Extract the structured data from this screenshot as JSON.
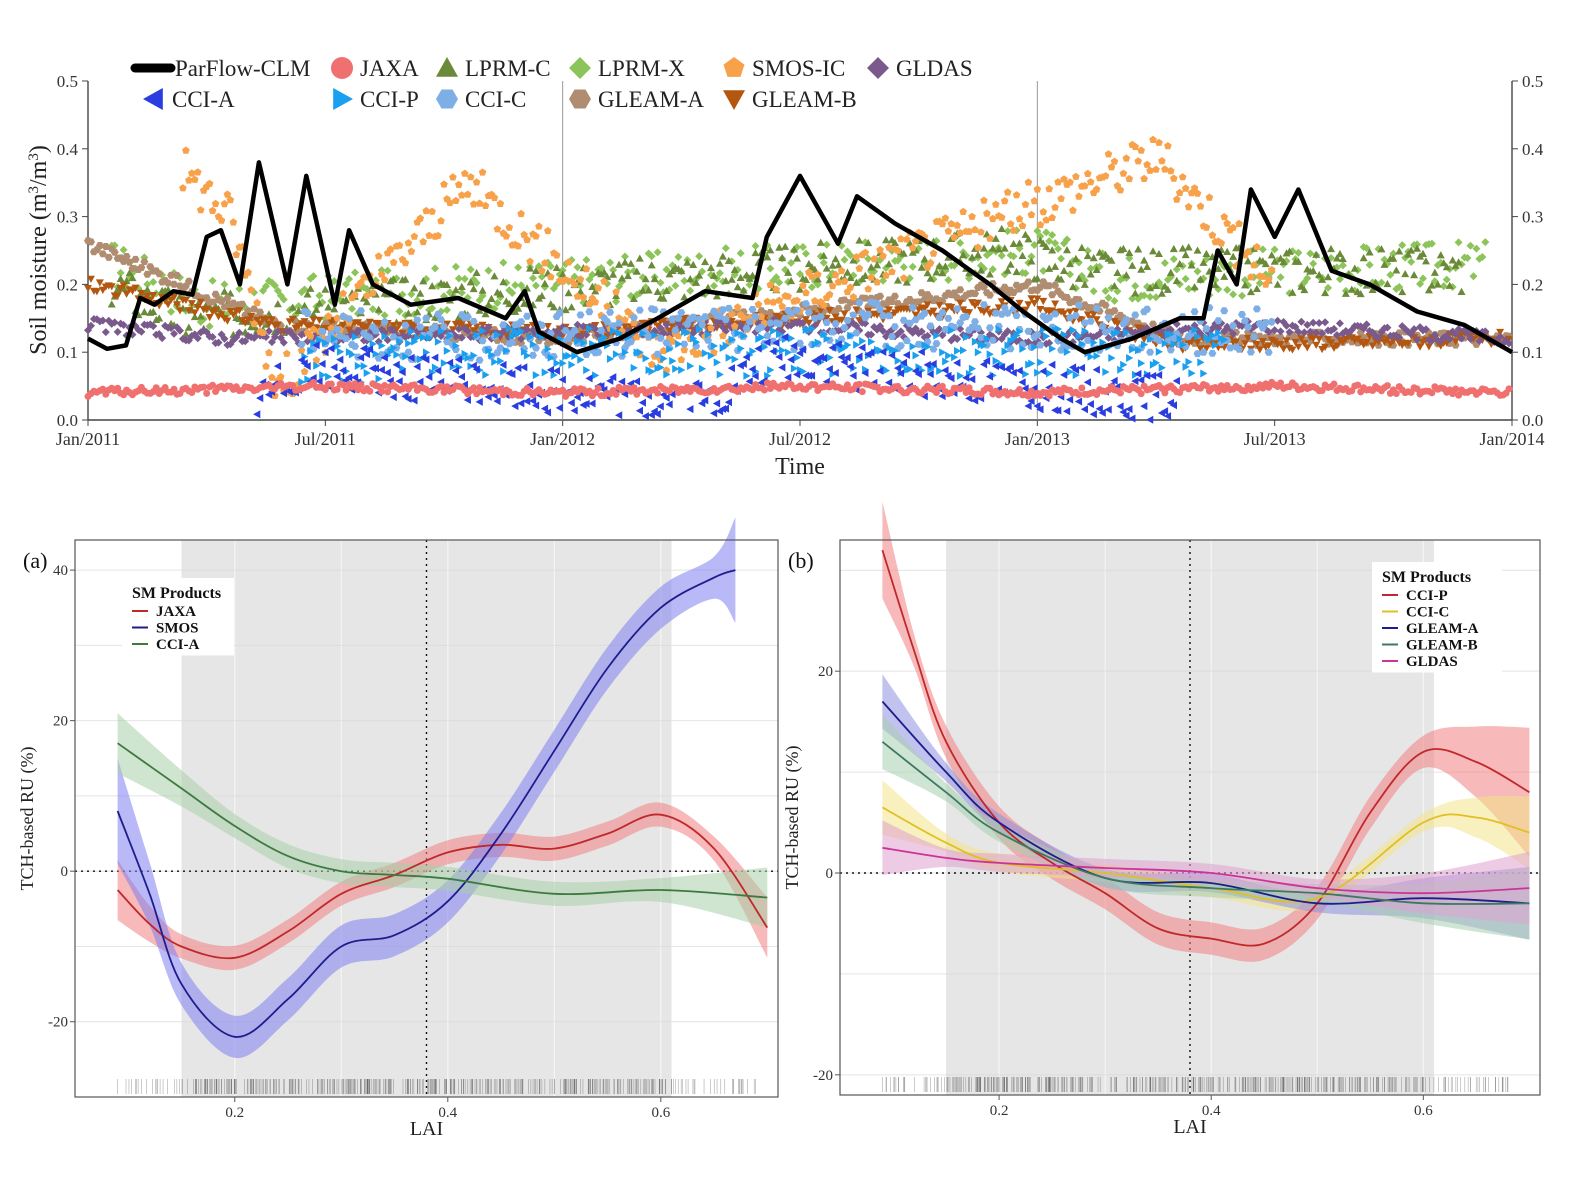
{
  "colors": {
    "ParFlow-CLM": "#000000",
    "JAXA": "#f07070",
    "LPRM-C": "#6a8a3a",
    "LPRM-X": "#8cc45a",
    "SMOS-IC": "#f7a24a",
    "GLDAS": "#7a5a8c",
    "CCI-A": "#2a3ee0",
    "CCI-P": "#1aa0ee",
    "CCI-C": "#7eaee6",
    "GLEAM-A": "#b08d70",
    "GLEAM-B": "#b3560f",
    "ru_JAXA": "#c0292b",
    "ru_SMOS": "#1d1d8c",
    "ru_CCI-A": "#3c7a40",
    "ru_CCI-P": "#c0292b",
    "ru_CCI-C": "#e0c020",
    "ru_GLEAM-A": "#1d1d8c",
    "ru_GLEAM-B": "#3c7a60",
    "ru_GLDAS": "#cc3399",
    "band_JAXA": "#f08080",
    "band_SMOS": "#8080f0",
    "band_CCI-A": "#a8d0a8",
    "band_CCI-P": "#f08080",
    "band_CCI-C": "#f4e48a",
    "band_GLEAM-A": "#9090e0",
    "band_GLEAM-B": "#a8d0b0",
    "band_GLDAS": "#e0a0d0"
  },
  "chart_data": [
    {
      "type": "scatter",
      "panel": "top",
      "ylabel": "Soil moisture (m³/m³)",
      "ylabel_parts": {
        "main": "Soil moisture (m",
        "sup": "3",
        "mid": "/m",
        "sup2": "3",
        "end": ")"
      },
      "xlabel": "Time",
      "ylim": [
        0.0,
        0.5
      ],
      "yticks": [
        "0.0",
        "0.1",
        "0.2",
        "0.3",
        "0.4",
        "0.5"
      ],
      "xticks": [
        "Jan/2011",
        "Jul/2011",
        "Jan/2012",
        "Jul/2012",
        "Jan/2013",
        "Jul/2013",
        "Jan/2014"
      ],
      "legend": {
        "row1": [
          "ParFlow-CLM",
          "JAXA",
          "LPRM-C",
          "LPRM-X",
          "SMOS-IC",
          "GLDAS"
        ],
        "row2": [
          "CCI-A",
          "CCI-P",
          "CCI-C",
          "GLEAM-A",
          "GLEAM-B"
        ]
      },
      "series": [
        {
          "name": "ParFlow-CLM",
          "values": [
            [
              0,
              0.12
            ],
            [
              0.04,
              0.105
            ],
            [
              0.08,
              0.11
            ],
            [
              0.11,
              0.18
            ],
            [
              0.14,
              0.17
            ],
            [
              0.18,
              0.19
            ],
            [
              0.22,
              0.185
            ],
            [
              0.25,
              0.27
            ],
            [
              0.28,
              0.28
            ],
            [
              0.32,
              0.2
            ],
            [
              0.36,
              0.38
            ],
            [
              0.42,
              0.2
            ],
            [
              0.46,
              0.36
            ],
            [
              0.52,
              0.17
            ],
            [
              0.55,
              0.28
            ],
            [
              0.6,
              0.2
            ],
            [
              0.68,
              0.17
            ],
            [
              0.78,
              0.18
            ],
            [
              0.88,
              0.15
            ],
            [
              0.92,
              0.19
            ],
            [
              0.95,
              0.13
            ],
            [
              1.03,
              0.1
            ],
            [
              1.12,
              0.12
            ],
            [
              1.2,
              0.15
            ],
            [
              1.3,
              0.19
            ],
            [
              1.4,
              0.18
            ],
            [
              1.43,
              0.27
            ],
            [
              1.5,
              0.36
            ],
            [
              1.58,
              0.26
            ],
            [
              1.62,
              0.33
            ],
            [
              1.7,
              0.29
            ],
            [
              1.8,
              0.25
            ],
            [
              1.9,
              0.2
            ],
            [
              1.97,
              0.16
            ],
            [
              2.05,
              0.12
            ],
            [
              2.1,
              0.1
            ],
            [
              2.2,
              0.12
            ],
            [
              2.3,
              0.15
            ],
            [
              2.35,
              0.15
            ],
            [
              2.38,
              0.25
            ],
            [
              2.42,
              0.2
            ],
            [
              2.45,
              0.34
            ],
            [
              2.5,
              0.27
            ],
            [
              2.55,
              0.34
            ],
            [
              2.62,
              0.22
            ],
            [
              2.7,
              0.2
            ],
            [
              2.8,
              0.16
            ],
            [
              2.9,
              0.14
            ],
            [
              3.0,
              0.1
            ]
          ]
        },
        {
          "name": "JAXA",
          "values": [
            [
              0,
              0.04
            ],
            [
              0.5,
              0.05
            ],
            [
              1.0,
              0.04
            ],
            [
              1.5,
              0.05
            ],
            [
              2.0,
              0.04
            ],
            [
              2.5,
              0.05
            ],
            [
              3.0,
              0.04
            ]
          ]
        },
        {
          "name": "LPRM-C",
          "values": [
            [
              0.05,
              0.2
            ],
            [
              0.2,
              0.15
            ],
            [
              1.95,
              0.25
            ],
            [
              2.1,
              0.22
            ],
            [
              2.9,
              0.22
            ]
          ]
        },
        {
          "name": "LPRM-X",
          "values": [
            [
              0.05,
              0.23
            ],
            [
              0.25,
              0.17
            ],
            [
              2.0,
              0.25
            ],
            [
              2.15,
              0.21
            ],
            [
              2.95,
              0.23
            ]
          ]
        },
        {
          "name": "SMOS-IC",
          "values": [
            [
              0.2,
              0.37
            ],
            [
              0.3,
              0.3
            ],
            [
              0.4,
              0.05
            ],
            [
              0.8,
              0.35
            ],
            [
              1.2,
              0.1
            ],
            [
              2.25,
              0.39
            ],
            [
              2.5,
              0.2
            ]
          ]
        },
        {
          "name": "GLDAS",
          "values": [
            [
              0,
              0.14
            ],
            [
              0.3,
              0.12
            ],
            [
              1.0,
              0.13
            ],
            [
              1.5,
              0.14
            ],
            [
              2.0,
              0.12
            ],
            [
              2.5,
              0.14
            ],
            [
              3.0,
              0.12
            ]
          ]
        },
        {
          "name": "CCI-A",
          "values": [
            [
              0.35,
              0.02
            ],
            [
              0.45,
              0.08
            ],
            [
              1.3,
              0.02
            ],
            [
              1.45,
              0.09
            ],
            [
              2.3,
              0.03
            ]
          ]
        },
        {
          "name": "CCI-P",
          "values": [
            [
              0.45,
              0.08
            ],
            [
              0.7,
              0.1
            ],
            [
              1.55,
              0.1
            ],
            [
              2.4,
              0.1
            ]
          ]
        },
        {
          "name": "CCI-C",
          "values": [
            [
              0.45,
              0.13
            ],
            [
              0.8,
              0.12
            ],
            [
              1.6,
              0.14
            ],
            [
              2.5,
              0.13
            ]
          ]
        },
        {
          "name": "GLEAM-A",
          "values": [
            [
              0,
              0.26
            ],
            [
              0.4,
              0.14
            ],
            [
              1.0,
              0.12
            ],
            [
              2.0,
              0.2
            ],
            [
              2.3,
              0.12
            ],
            [
              3.0,
              0.12
            ]
          ]
        },
        {
          "name": "GLEAM-B",
          "values": [
            [
              0,
              0.2
            ],
            [
              0.4,
              0.14
            ],
            [
              1.0,
              0.13
            ],
            [
              2.0,
              0.17
            ],
            [
              2.3,
              0.11
            ],
            [
              3.0,
              0.12
            ]
          ]
        }
      ]
    },
    {
      "type": "line",
      "panel": "a",
      "panel_label": "(a)",
      "xlabel": "LAI",
      "ylabel": "TCH-based RU (%)",
      "xlim": [
        0.05,
        0.71
      ],
      "ylim": [
        -30,
        44
      ],
      "xticks": [
        "0.2",
        "0.4",
        "0.6"
      ],
      "yticks": [
        "-20",
        "0",
        "20",
        "40"
      ],
      "legend_title": "SM Products",
      "shaded_range": [
        0.15,
        0.61
      ],
      "vline": 0.38,
      "series": [
        {
          "name": "JAXA",
          "x": [
            0.09,
            0.12,
            0.15,
            0.2,
            0.25,
            0.3,
            0.35,
            0.4,
            0.45,
            0.5,
            0.55,
            0.6,
            0.65,
            0.7
          ],
          "values": [
            -2.5,
            -7,
            -10,
            -11.5,
            -8,
            -3,
            -0.5,
            2.5,
            3.5,
            3,
            5,
            7.5,
            3,
            -7.5
          ]
        },
        {
          "name": "SMOS",
          "x": [
            0.09,
            0.12,
            0.15,
            0.2,
            0.25,
            0.3,
            0.35,
            0.4,
            0.45,
            0.5,
            0.55,
            0.6,
            0.65,
            0.67
          ],
          "values": [
            8,
            -3,
            -15,
            -22,
            -17,
            -10,
            -8.5,
            -4,
            5,
            16,
            27,
            35,
            39,
            40
          ]
        },
        {
          "name": "CCI-A",
          "x": [
            0.09,
            0.15,
            0.2,
            0.25,
            0.3,
            0.35,
            0.4,
            0.5,
            0.6,
            0.7
          ],
          "values": [
            17,
            11,
            6,
            2,
            0,
            -0.5,
            -1,
            -3,
            -2.5,
            -3.5
          ]
        }
      ]
    },
    {
      "type": "line",
      "panel": "b",
      "panel_label": "(b)",
      "xlabel": "LAI",
      "ylabel": "TCH-based RU (%)",
      "xlim": [
        0.05,
        0.71
      ],
      "ylim": [
        -22,
        33
      ],
      "xticks": [
        "0.2",
        "0.4",
        "0.6"
      ],
      "yticks": [
        "-20",
        "0",
        "20"
      ],
      "legend_title": "SM Products",
      "shaded_range": [
        0.15,
        0.61
      ],
      "vline": 0.38,
      "series": [
        {
          "name": "CCI-P",
          "x": [
            0.09,
            0.12,
            0.15,
            0.2,
            0.25,
            0.3,
            0.35,
            0.4,
            0.45,
            0.5,
            0.55,
            0.6,
            0.65,
            0.7
          ],
          "values": [
            32,
            22,
            13,
            5,
            1,
            -2,
            -5.5,
            -6.5,
            -7,
            -3,
            6,
            12,
            11,
            8
          ]
        },
        {
          "name": "CCI-C",
          "x": [
            0.09,
            0.15,
            0.2,
            0.3,
            0.4,
            0.5,
            0.6,
            0.65,
            0.7
          ],
          "values": [
            6.5,
            3,
            1,
            0,
            -1.5,
            -2.5,
            5,
            5.5,
            4
          ]
        },
        {
          "name": "GLEAM-A",
          "x": [
            0.09,
            0.15,
            0.2,
            0.3,
            0.4,
            0.5,
            0.6,
            0.7
          ],
          "values": [
            17,
            10,
            5,
            -0.5,
            -1,
            -3,
            -2.5,
            -3
          ]
        },
        {
          "name": "GLEAM-B",
          "x": [
            0.09,
            0.15,
            0.2,
            0.3,
            0.4,
            0.5,
            0.6,
            0.7
          ],
          "values": [
            13,
            8,
            4,
            -0.5,
            -1.5,
            -2,
            -3,
            -3
          ]
        },
        {
          "name": "GLDAS",
          "x": [
            0.09,
            0.15,
            0.2,
            0.3,
            0.4,
            0.5,
            0.6,
            0.7
          ],
          "values": [
            2.5,
            1.5,
            1,
            0.5,
            0,
            -1.5,
            -2,
            -1.5
          ]
        }
      ]
    }
  ]
}
